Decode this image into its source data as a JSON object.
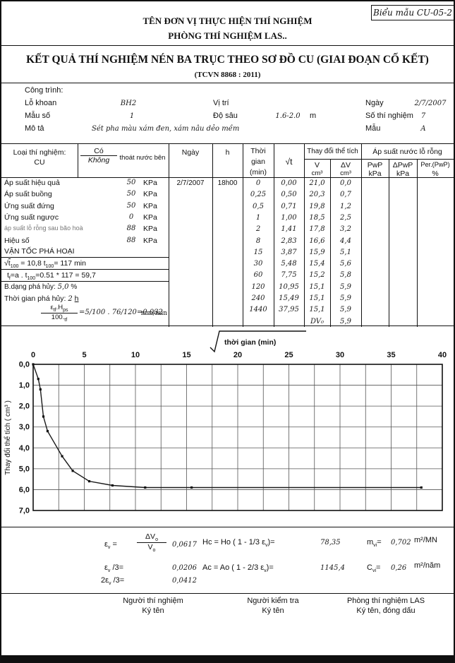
{
  "form_code": "Biểu mẫu CU-05-2",
  "header": {
    "org": "TÊN ĐƠN VỊ THỰC HIỆN THÍ NGHIỆM",
    "lab": "PHÒNG THÍ NGHIỆM LAS..",
    "title": "KẾT QUẢ THÍ NGHIỆM NÉN BA TRỤC THEO SƠ ĐỒ CU (GIAI ĐOẠN CỐ KẾT)",
    "standard": "(TCVN 8868 : 2011)"
  },
  "info": {
    "cong_trinh_label": "Công trình:",
    "lo_khoan_label": "Lỗ khoan",
    "lo_khoan_value": "BH2",
    "mau_so_label": "Mẫu số",
    "mau_so_value": "1",
    "mo_ta_label": "Mô tả",
    "mo_ta_value": "Sét pha màu xám đen, xám nâu dẻo mềm",
    "vi_tri_label": "Vị trí",
    "do_sau_label": "Độ sâu",
    "do_sau_value": "1.6-2.0",
    "do_sau_unit": "m",
    "ngay_label": "Ngày",
    "ngay_value": "2/7/2007",
    "so_thi_nghiem_label": "Số thí nghiệm",
    "so_thi_nghiem_value": "7",
    "mau_label": "Mẫu",
    "mau_value": "A"
  },
  "table": {
    "loai_label": "Loại thí nghiệm:",
    "loai_value": "CU",
    "co": "Có",
    "khong": "Không",
    "thoat": "thoát nước bên",
    "ngay": "Ngày",
    "h": "h",
    "tg1": "Thời",
    "tg2": "gian",
    "tg3": "(min)",
    "sqrt_t": "√t",
    "group_v": "Thay đổi thể tích",
    "group_p": "Áp suất nước lỗ rỗng",
    "v": "V",
    "dv": "ΔV",
    "cm3": "cm³",
    "pwp": "PwP",
    "dpwp": "ΔPwP",
    "per": "Per.(PwP)",
    "kpa": "kPa",
    "pct": "%",
    "ngay_value": "2/7/2007",
    "h_value": "18h00",
    "left_rows": [
      {
        "label": "Áp suất hiệu quả",
        "value": "50",
        "unit": "KPa",
        "small": false
      },
      {
        "label": "Áp suất buồng",
        "value": "50",
        "unit": "KPa",
        "small": false
      },
      {
        "label": "Ứng suất đứng",
        "value": "50",
        "unit": "KPa",
        "small": false
      },
      {
        "label": "Ứng suất ngược",
        "value": "0",
        "unit": "KPa",
        "small": false
      },
      {
        "label": "áp suất lỗ rỗng sau bão hoà",
        "value": "88",
        "unit": "KPa",
        "small": true
      },
      {
        "label": "Hiệu số",
        "value": "88",
        "unit": "KPa",
        "small": false
      }
    ],
    "van_toc": "VẬN TỐC PHÁ HOẠI",
    "vt100": {
      "rad": "√",
      "t": "t",
      "sub": "100",
      "eq": "=",
      "value": "10,8",
      "t2": "t",
      "t2sub": "100",
      "t2eq": "=",
      "t2value": "117",
      "unit": "min"
    },
    "tf": {
      "p1": "t",
      "s1": "f",
      "p2": "=a . t",
      "s2": "100",
      "p3": "=0.51",
      "star": "*",
      "v1": "117",
      "eq": "=",
      "v2": "59,7"
    },
    "bdang": {
      "label": "B.dạng phá hủy:",
      "value": "5,0",
      "unit": "%"
    },
    "tgph": {
      "label": "Thời gian phá hủy:",
      "value": "2",
      "unit": "h"
    },
    "formula": {
      "n1": "ε",
      "ns": "tf",
      "n2": ".H",
      "n2s": "ps",
      "d1": "100.",
      "ds": "tf",
      "expr": "=5/100 . 76/120=0.032",
      "unit": "mm/min"
    },
    "rows": [
      {
        "t": "0",
        "sqrt": "0,00",
        "v": "21,0",
        "dv": "0,0"
      },
      {
        "t": "0,25",
        "sqrt": "0,50",
        "v": "20,3",
        "dv": "0,7"
      },
      {
        "t": "0,5",
        "sqrt": "0,71",
        "v": "19,8",
        "dv": "1,2"
      },
      {
        "t": "1",
        "sqrt": "1,00",
        "v": "18,5",
        "dv": "2,5"
      },
      {
        "t": "2",
        "sqrt": "1,41",
        "v": "17,8",
        "dv": "3,2"
      },
      {
        "t": "8",
        "sqrt": "2,83",
        "v": "16,6",
        "dv": "4,4"
      },
      {
        "t": "15",
        "sqrt": "3,87",
        "v": "15,9",
        "dv": "5,1"
      },
      {
        "t": "30",
        "sqrt": "5,48",
        "v": "15,4",
        "dv": "5,6"
      },
      {
        "t": "60",
        "sqrt": "7,75",
        "v": "15,2",
        "dv": "5,8"
      },
      {
        "t": "120",
        "sqrt": "10,95",
        "v": "15,1",
        "dv": "5,9"
      },
      {
        "t": "240",
        "sqrt": "15,49",
        "v": "15,1",
        "dv": "5,9"
      },
      {
        "t": "1440",
        "sqrt": "37,95",
        "v": "15,1",
        "dv": "5,9"
      },
      {
        "t": "",
        "sqrt": "",
        "v": "DV₀",
        "dv": "5,9"
      }
    ]
  },
  "chart_data": {
    "type": "line",
    "title": "√thời gian (min)",
    "title_text": "thời gian (min)",
    "xlabel": "√thời gian (min)",
    "ylabel": "Thay đổi thể tích ( cm³ )",
    "x": [
      0,
      0.5,
      0.71,
      1,
      1.41,
      2.83,
      3.87,
      5.48,
      7.75,
      10.95,
      15.49,
      37.95
    ],
    "y": [
      0,
      0.7,
      1.2,
      2.5,
      3.2,
      4.4,
      5.1,
      5.6,
      5.8,
      5.9,
      5.9,
      5.9
    ],
    "xlim": [
      0,
      40
    ],
    "ylim": [
      0,
      7
    ],
    "x_ticks": [
      0,
      5,
      10,
      15,
      20,
      25,
      30,
      35,
      40
    ],
    "y_tick_labels": [
      "0,0",
      "1,0",
      "2,0",
      "3,0",
      "4,0",
      "5,0",
      "6,0",
      "7,0"
    ],
    "x_grid_step": 2.5,
    "y_grid_step": 1,
    "grid": true,
    "legend": "none"
  },
  "calcs": {
    "ev": {
      "e": "ε",
      "sub": "v",
      "eq": "=",
      "num": "ΔV",
      "numsub": "o",
      "den": "V",
      "densub": "o",
      "value": "0,0617"
    },
    "ev3": {
      "e": "ε",
      "sub": "v",
      "rest": "/3=",
      "value": "0,0206"
    },
    "ev23": {
      "pre": "2",
      "e": "ε",
      "sub": "v",
      "rest": "/3=",
      "value": "0,0412"
    },
    "hc": {
      "p1": "Hc =  Ho ( 1 - 1/3 ",
      "e": "ε",
      "sub": "v",
      "p2": ")=",
      "value": "78,35"
    },
    "ac": {
      "p1": "Ac =  Ao ( 1 - 2/3 ",
      "e": "ε",
      "sub": "v",
      "p2": ")=",
      "value": "1145,4"
    },
    "mvi": {
      "m": "m",
      "sub": "vi",
      "eq": "=",
      "value": "0,702",
      "unit": "m²/MN"
    },
    "cvi": {
      "c": "C",
      "sub": "vi",
      "eq": "=",
      "value": "0,26",
      "unit": "m²/năm"
    }
  },
  "footer": {
    "c1a": "Người thí nghiệm",
    "c1b": "Ký tên",
    "c2a": "Người kiểm tra",
    "c2b": "Ký tên",
    "c3a": "Phòng thí nghiệm LAS",
    "c3b": "Ký tên, đóng dấu"
  }
}
